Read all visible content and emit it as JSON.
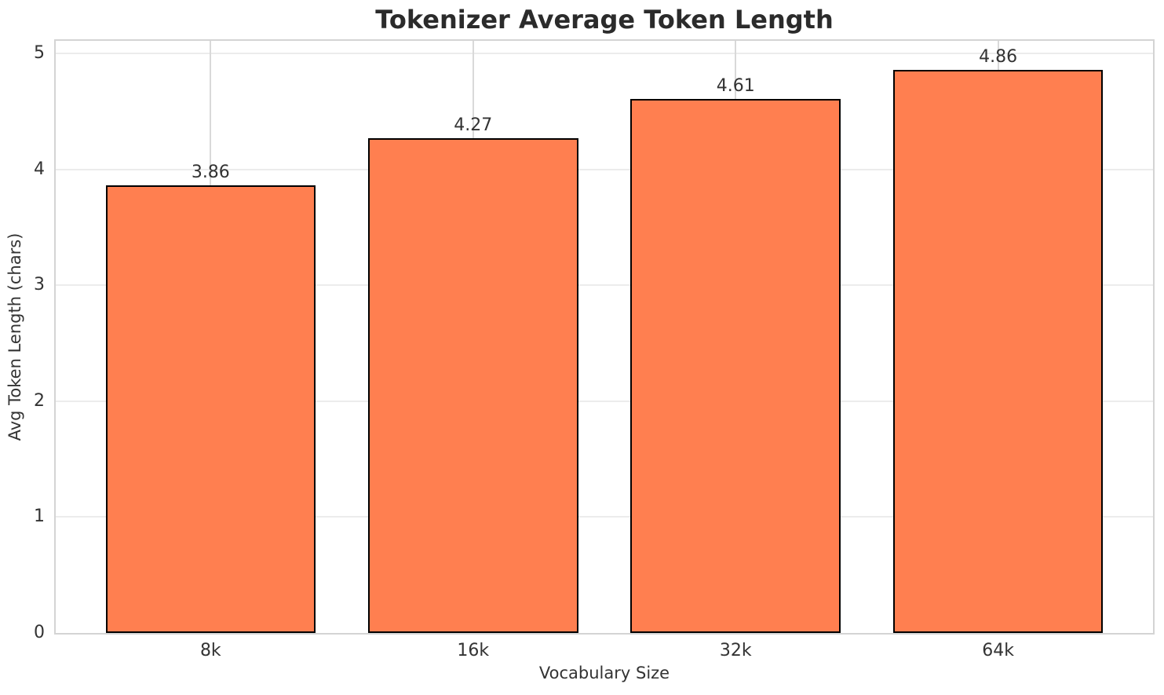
{
  "chart_data": {
    "type": "bar",
    "title": "Tokenizer Average Token Length",
    "xlabel": "Vocabulary Size",
    "ylabel": "Avg Token Length (chars)",
    "categories": [
      "8k",
      "16k",
      "32k",
      "64k"
    ],
    "values": [
      3.86,
      4.27,
      4.61,
      4.86
    ],
    "value_labels": [
      "3.86",
      "4.27",
      "4.61",
      "4.86"
    ],
    "yticks": [
      "0",
      "1",
      "2",
      "3",
      "4",
      "5"
    ],
    "ytick_values": [
      0,
      1,
      2,
      3,
      4,
      5
    ],
    "ylim": [
      0,
      5.11
    ],
    "xlim": [
      -0.59,
      3.59
    ],
    "bar_width": 0.8,
    "grid": "both",
    "legend": "none",
    "colors": {
      "bar_fill": "#ff7f50",
      "bar_edge": "#000000",
      "grid_h": "#ececec",
      "grid_v": "#d9d9d9",
      "spine": "#d4d4d4",
      "tick_text": "#333333",
      "title_text": "#2b2b2b"
    }
  }
}
